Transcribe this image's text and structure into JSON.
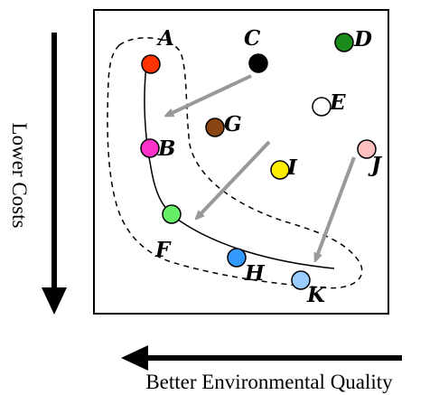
{
  "axes": {
    "x_label": "Better Environmental Quality",
    "y_label": "Lower Costs"
  },
  "points": [
    {
      "id": "A",
      "label": "A",
      "color": "#ff3300"
    },
    {
      "id": "B",
      "label": "B",
      "color": "#ff33cc"
    },
    {
      "id": "C",
      "label": "C",
      "color": "#000000"
    },
    {
      "id": "D",
      "label": "D",
      "color": "#1a8a1a"
    },
    {
      "id": "E",
      "label": "E",
      "color": "#ffffff"
    },
    {
      "id": "F",
      "label": "F",
      "color": "#66ee66"
    },
    {
      "id": "G",
      "label": "G",
      "color": "#8b4513"
    },
    {
      "id": "H",
      "label": "H",
      "color": "#3399ff"
    },
    {
      "id": "I",
      "label": "I",
      "color": "#ffee00"
    },
    {
      "id": "J",
      "label": "J",
      "color": "#ffc0c0"
    },
    {
      "id": "K",
      "label": "K",
      "color": "#99ccff"
    }
  ],
  "frontier": {
    "members": [
      "A",
      "B",
      "F",
      "H",
      "K"
    ]
  },
  "arrows": [
    {
      "from": "C",
      "to": "B",
      "color": "#999999"
    },
    {
      "from": "G-I region",
      "to": "F",
      "color": "#999999"
    },
    {
      "from": "J",
      "to": "K",
      "color": "#999999"
    }
  ]
}
